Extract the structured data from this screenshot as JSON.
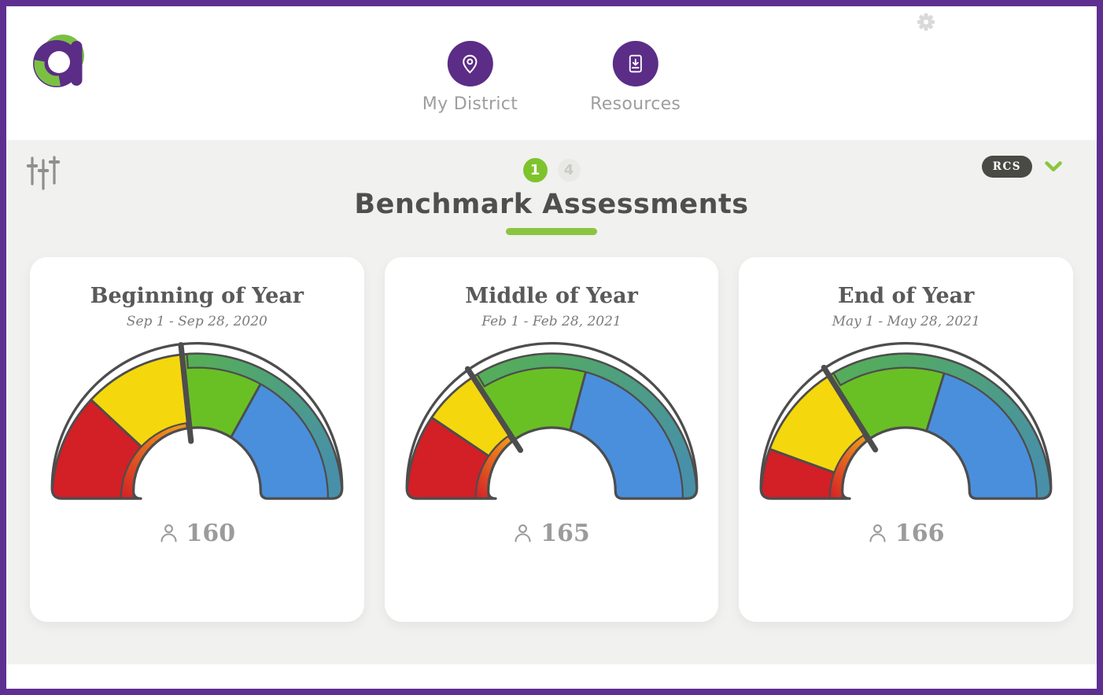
{
  "header": {
    "logo_name": "amira-logo",
    "nav_items": [
      {
        "label": "My District",
        "icon": "map-pin-icon"
      },
      {
        "label": "Resources",
        "icon": "document-download-icon"
      }
    ]
  },
  "toolbar": {
    "filter_icon": "sliders-icon",
    "pagination": [
      {
        "label": "1",
        "active": true
      },
      {
        "label": "4",
        "active": false
      }
    ],
    "district_badge": "RCS"
  },
  "page": {
    "title": "Benchmark Assessments"
  },
  "chart_data": [
    {
      "type": "gauge",
      "title": "Beginning of Year",
      "date_range": "Sep 1 - Sep 28, 2020",
      "students": 160,
      "angle_scale": "semicircle, 180deg = left end, 0deg = right end",
      "segments": [
        {
          "name": "red",
          "color": "#d31f26",
          "start_deg": 180,
          "end_deg": 137
        },
        {
          "name": "yellow",
          "color": "#f5d70d",
          "start_deg": 137,
          "end_deg": 96
        },
        {
          "name": "green",
          "color": "#69c024",
          "start_deg": 96,
          "end_deg": 61
        },
        {
          "name": "blue",
          "color": "#4a8fdc",
          "start_deg": 61,
          "end_deg": 0
        }
      ],
      "needle_deg": 96,
      "inner_band": {
        "from_deg": 180,
        "to_deg": 98,
        "gradient": [
          "#d31f26",
          "#f0931c"
        ]
      },
      "outer_band": {
        "from_deg": 94,
        "to_deg": 0,
        "gradient": [
          "#56b052",
          "#4790a8"
        ]
      }
    },
    {
      "type": "gauge",
      "title": "Middle of Year",
      "date_range": "Feb 1 - Feb 28, 2021",
      "students": 165,
      "angle_scale": "semicircle, 180deg = left end, 0deg = right end",
      "segments": [
        {
          "name": "red",
          "color": "#d31f26",
          "start_deg": 180,
          "end_deg": 146
        },
        {
          "name": "yellow",
          "color": "#f5d70d",
          "start_deg": 146,
          "end_deg": 123
        },
        {
          "name": "green",
          "color": "#69c024",
          "start_deg": 123,
          "end_deg": 75
        },
        {
          "name": "blue",
          "color": "#4a8fdc",
          "start_deg": 75,
          "end_deg": 0
        }
      ],
      "needle_deg": 123,
      "inner_band": {
        "from_deg": 180,
        "to_deg": 125,
        "gradient": [
          "#d31f26",
          "#f0931c"
        ]
      },
      "outer_band": {
        "from_deg": 121,
        "to_deg": 0,
        "gradient": [
          "#56b052",
          "#4790a8"
        ]
      }
    },
    {
      "type": "gauge",
      "title": "End of Year",
      "date_range": "May 1 - May 28, 2021",
      "students": 166,
      "angle_scale": "semicircle, 180deg = left end, 0deg = right end",
      "segments": [
        {
          "name": "red",
          "color": "#d31f26",
          "start_deg": 180,
          "end_deg": 160
        },
        {
          "name": "yellow",
          "color": "#f5d70d",
          "start_deg": 160,
          "end_deg": 122
        },
        {
          "name": "green",
          "color": "#69c024",
          "start_deg": 122,
          "end_deg": 73
        },
        {
          "name": "blue",
          "color": "#4a8fdc",
          "start_deg": 73,
          "end_deg": 0
        }
      ],
      "needle_deg": 122,
      "inner_band": {
        "from_deg": 180,
        "to_deg": 124,
        "gradient": [
          "#d31f26",
          "#f0931c"
        ]
      },
      "outer_band": {
        "from_deg": 120,
        "to_deg": 0,
        "gradient": [
          "#56b052",
          "#4790a8"
        ]
      }
    }
  ],
  "colors": {
    "frame_purple": "#5e2f91",
    "brand_purple": "#5b2d86",
    "accent_green": "#7fc32c",
    "underline_green": "#8bc53f",
    "gauge_outline": "#4d4d4d",
    "segment_red": "#d31f26",
    "segment_yellow": "#f5d70d",
    "segment_green": "#69c024",
    "segment_blue": "#4a8fdc"
  }
}
